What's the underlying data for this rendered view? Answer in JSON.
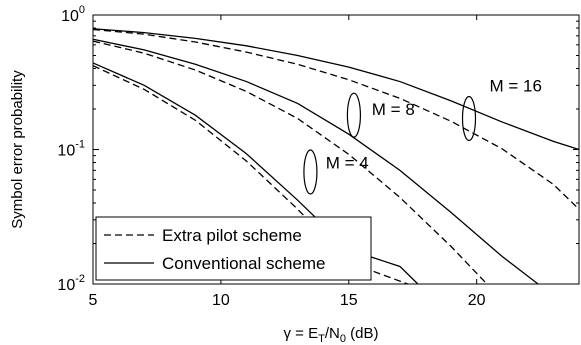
{
  "chart_data": {
    "type": "line",
    "title": "",
    "xlabel_parts": {
      "prefix": "γ = E",
      "sub1": "T",
      "mid": "/N",
      "sub2": "0",
      "suffix": " (dB)"
    },
    "ylabel": "Symbol error probability",
    "yscale": "log",
    "xlim": [
      5,
      24
    ],
    "ylim": [
      0.01,
      1
    ],
    "xticks": [
      5,
      10,
      15,
      20
    ],
    "xtick_labels": [
      "5",
      "10",
      "15",
      "20"
    ],
    "yticks": [
      0.01,
      0.1,
      1
    ],
    "ytick_labels": [
      {
        "base": "10",
        "exp": "-2"
      },
      {
        "base": "10",
        "exp": "-1"
      },
      {
        "base": "10",
        "exp": "0"
      }
    ],
    "grid": false,
    "legend": {
      "placement": "lower-left",
      "entries": [
        {
          "label": "Extra pilot scheme",
          "style": "dashed"
        },
        {
          "label": "Conventional scheme",
          "style": "solid"
        }
      ]
    },
    "series": [
      {
        "group": "M = 4",
        "scheme": "conventional",
        "style": "solid",
        "x": [
          5,
          7,
          9,
          11,
          13,
          15,
          17,
          17.7
        ],
        "y": [
          0.44,
          0.3,
          0.18,
          0.093,
          0.042,
          0.018,
          0.0135,
          0.01
        ]
      },
      {
        "group": "M = 4",
        "scheme": "extra pilot",
        "style": "dashed",
        "x": [
          5,
          7,
          9,
          11,
          13,
          15,
          17,
          17.3
        ],
        "y": [
          0.42,
          0.28,
          0.165,
          0.082,
          0.036,
          0.0145,
          0.0105,
          0.01
        ]
      },
      {
        "group": "M = 8",
        "scheme": "conventional",
        "style": "solid",
        "x": [
          5,
          7,
          9,
          11,
          13,
          15,
          17,
          19,
          21,
          22.4
        ],
        "y": [
          0.66,
          0.55,
          0.43,
          0.32,
          0.22,
          0.13,
          0.07,
          0.034,
          0.016,
          0.01
        ]
      },
      {
        "group": "M = 8",
        "scheme": "extra pilot",
        "style": "dashed",
        "x": [
          5,
          7,
          9,
          11,
          13,
          15,
          17,
          19,
          20.4
        ],
        "y": [
          0.64,
          0.52,
          0.39,
          0.27,
          0.17,
          0.092,
          0.044,
          0.019,
          0.01
        ]
      },
      {
        "group": "M = 16",
        "scheme": "conventional",
        "style": "solid",
        "x": [
          5,
          7,
          9,
          11,
          13,
          15,
          17,
          19,
          21,
          23,
          24
        ],
        "y": [
          0.79,
          0.74,
          0.67,
          0.59,
          0.5,
          0.41,
          0.32,
          0.23,
          0.16,
          0.115,
          0.1
        ]
      },
      {
        "group": "M = 16",
        "scheme": "extra pilot",
        "style": "dashed",
        "x": [
          5,
          7,
          9,
          11,
          13,
          15,
          17,
          19,
          21,
          23,
          24
        ],
        "y": [
          0.78,
          0.72,
          0.63,
          0.53,
          0.43,
          0.33,
          0.24,
          0.162,
          0.101,
          0.055,
          0.036
        ]
      }
    ],
    "annotations": [
      {
        "text": "M = 4",
        "ellipse_at": {
          "x": 13.5,
          "y": 0.068
        },
        "text_at": {
          "x": 14.1,
          "y": 0.08
        }
      },
      {
        "text": "M = 8",
        "ellipse_at": {
          "x": 15.2,
          "y": 0.18
        },
        "text_at": {
          "x": 15.9,
          "y": 0.2
        }
      },
      {
        "text": "M = 16",
        "ellipse_at": {
          "x": 19.7,
          "y": 0.17
        },
        "text_at": {
          "x": 20.5,
          "y": 0.3
        }
      }
    ]
  }
}
